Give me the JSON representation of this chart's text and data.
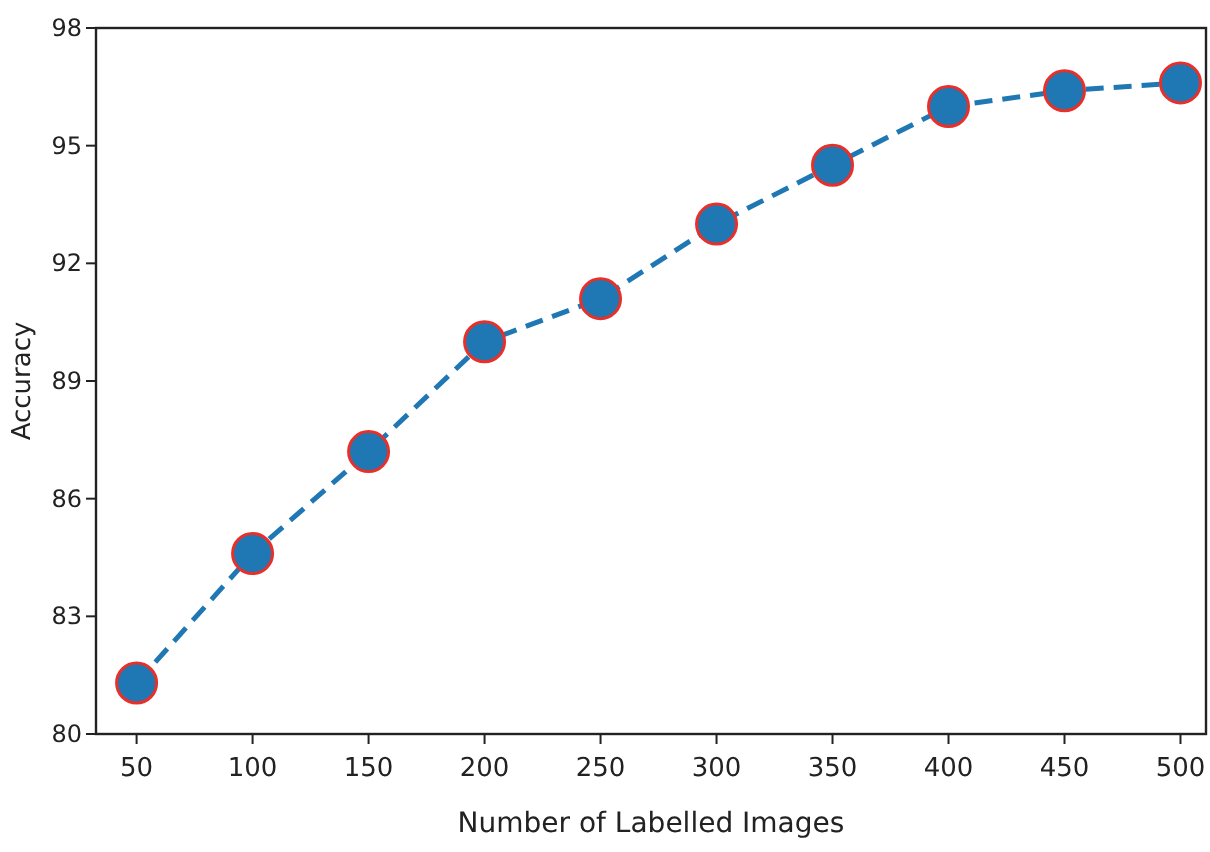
{
  "chart_data": {
    "type": "line",
    "xlabel": "Number of Labelled Images",
    "ylabel": "Accuracy",
    "x": [
      50,
      100,
      150,
      200,
      250,
      300,
      350,
      400,
      450,
      500
    ],
    "series": [
      {
        "color": "#1f77b4",
        "values": [
          81.3,
          84.6,
          87.2,
          90.0,
          91.1,
          93.0,
          94.5,
          96.0,
          96.4,
          96.6
        ]
      }
    ],
    "xlim": [
      32.5,
      511
    ],
    "xticks": [
      50,
      100,
      150,
      200,
      250,
      300,
      350,
      400,
      450,
      500
    ],
    "ylim": [
      80,
      98
    ],
    "yticks": [
      80,
      83,
      86,
      89,
      92,
      95,
      98
    ],
    "marker": "circle",
    "line_style": "dashed",
    "grid": false
  }
}
